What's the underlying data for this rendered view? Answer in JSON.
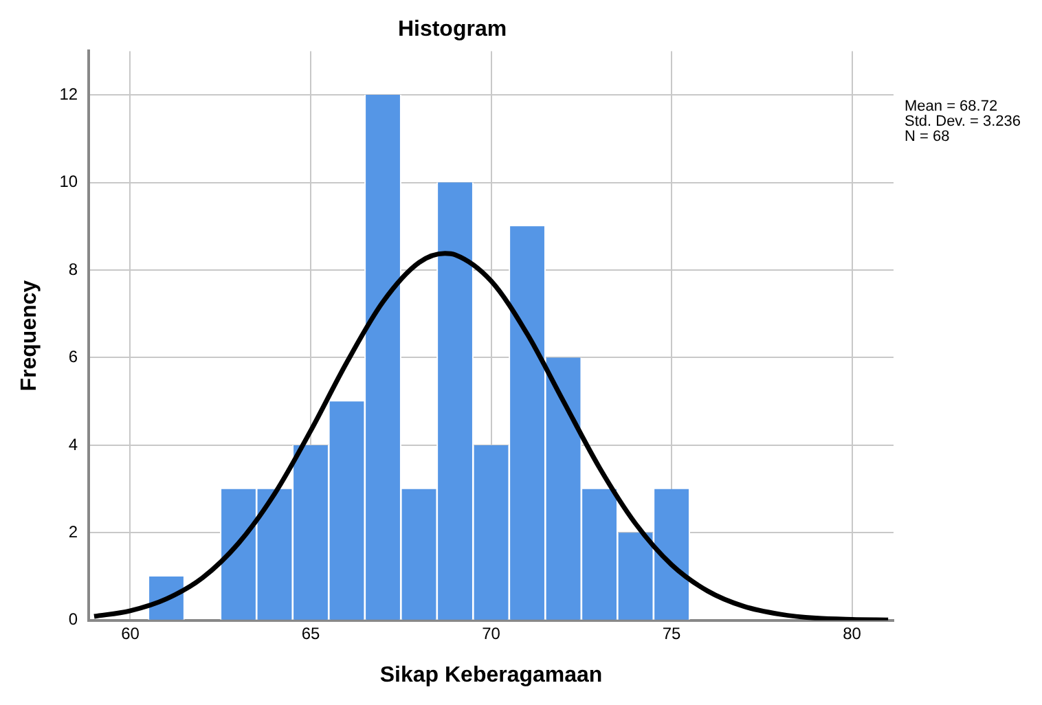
{
  "chart_data": {
    "type": "histogram",
    "title": "Histogram",
    "xlabel": "Sikap Keberagamaan",
    "ylabel": "Frequency",
    "bins": [
      60.5,
      61.5,
      62.5,
      63.5,
      64.5,
      65.5,
      66.5,
      67.5,
      68.5,
      69.5,
      70.5,
      71.5,
      72.5,
      73.5,
      74.5,
      75.5
    ],
    "values": [
      1,
      0,
      3,
      3,
      4,
      5,
      12,
      3,
      10,
      4,
      9,
      6,
      3,
      2,
      3
    ],
    "color": "#5596e6",
    "series": [
      {
        "type": "line",
        "color": "#000000",
        "x": [
          59,
          60,
          61,
          62,
          63,
          64,
          65,
          66,
          67,
          68,
          68.72,
          69,
          70,
          71,
          72,
          73,
          74,
          75,
          76,
          77,
          78,
          79,
          80,
          81
        ],
        "values": [
          0.09,
          0.22,
          0.49,
          0.97,
          1.76,
          2.89,
          4.33,
          5.89,
          7.27,
          8.17,
          8.38,
          8.35,
          7.75,
          6.54,
          5.01,
          3.49,
          2.21,
          1.27,
          0.67,
          0.32,
          0.14,
          0.05,
          0.02,
          0.01
        ]
      }
    ],
    "xlim": [
      58.85,
      81.15
    ],
    "xticks": [
      60,
      65,
      70,
      75,
      80
    ],
    "ylim": [
      0,
      13
    ],
    "yticks": [
      0,
      2,
      4,
      6,
      8,
      10,
      12
    ],
    "grid": true,
    "legend": false,
    "marker": "none",
    "line_style": "solid",
    "annotations": [
      "Mean = 68.72",
      "Std. Dev. = 3.236",
      "N = 68"
    ]
  }
}
